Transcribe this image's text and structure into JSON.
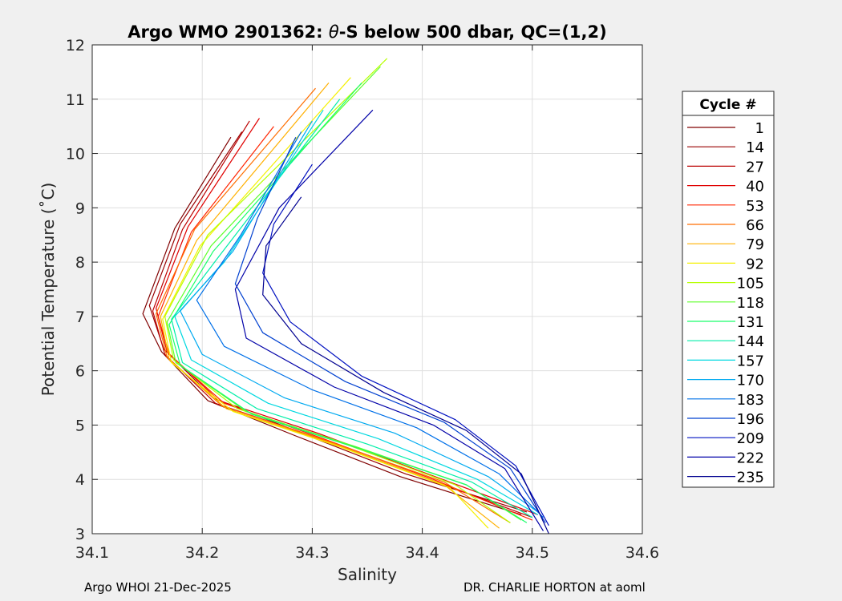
{
  "chart_data": {
    "type": "line",
    "title_prefix": "Argo WMO 2901362: ",
    "title_symbol": "θ",
    "title_suffix": "-S below 500 dbar,  QC=(1,2)",
    "xlabel": "Salinity",
    "ylabel": "Potential Temperature (˚C)",
    "xlim": [
      34.1,
      34.6
    ],
    "ylim": [
      3,
      12
    ],
    "xticks": [
      34.1,
      34.2,
      34.3,
      34.4,
      34.5,
      34.6
    ],
    "xtick_labels": [
      "34.1",
      "34.2",
      "34.3",
      "34.4",
      "34.5",
      "34.6"
    ],
    "yticks": [
      3,
      4,
      5,
      6,
      7,
      8,
      9,
      10,
      11,
      12
    ],
    "ytick_labels": [
      "3",
      "4",
      "5",
      "6",
      "7",
      "8",
      "9",
      "10",
      "11",
      "12"
    ],
    "grid": true,
    "legend_title": "Cycle #",
    "legend_position": "outside-right",
    "series": [
      {
        "name": "1",
        "color": "#800000",
        "points": [
          [
            34.226,
            10.3
          ],
          [
            34.175,
            8.62
          ],
          [
            34.146,
            7.05
          ],
          [
            34.163,
            6.35
          ],
          [
            34.205,
            5.45
          ],
          [
            34.285,
            4.8
          ],
          [
            34.38,
            4.05
          ],
          [
            34.49,
            3.35
          ]
        ]
      },
      {
        "name": "14",
        "color": "#990000",
        "points": [
          [
            34.236,
            10.4
          ],
          [
            34.18,
            8.7
          ],
          [
            34.152,
            7.2
          ],
          [
            34.165,
            6.4
          ],
          [
            34.21,
            5.5
          ],
          [
            34.29,
            4.85
          ],
          [
            34.385,
            4.1
          ],
          [
            34.495,
            3.4
          ]
        ]
      },
      {
        "name": "27",
        "color": "#bb0000",
        "points": [
          [
            34.243,
            10.6
          ],
          [
            34.182,
            8.6
          ],
          [
            34.155,
            7.1
          ],
          [
            34.166,
            6.3
          ],
          [
            34.212,
            5.4
          ],
          [
            34.3,
            4.8
          ],
          [
            34.4,
            4.05
          ],
          [
            34.5,
            3.3
          ]
        ]
      },
      {
        "name": "40",
        "color": "#e00000",
        "points": [
          [
            34.252,
            10.65
          ],
          [
            34.187,
            8.65
          ],
          [
            34.158,
            7.15
          ],
          [
            34.168,
            6.35
          ],
          [
            34.215,
            5.45
          ],
          [
            34.305,
            4.85
          ],
          [
            34.405,
            4.1
          ],
          [
            34.505,
            3.35
          ]
        ]
      },
      {
        "name": "53",
        "color": "#ff2400",
        "points": [
          [
            34.265,
            10.5
          ],
          [
            34.19,
            8.55
          ],
          [
            34.16,
            7.0
          ],
          [
            34.17,
            6.3
          ],
          [
            34.22,
            5.4
          ],
          [
            34.31,
            4.75
          ],
          [
            34.41,
            4.0
          ],
          [
            34.5,
            3.25
          ]
        ]
      },
      {
        "name": "66",
        "color": "#ff6e00",
        "points": [
          [
            34.303,
            11.2
          ],
          [
            34.193,
            8.6
          ],
          [
            34.158,
            7.05
          ],
          [
            34.168,
            6.25
          ],
          [
            34.218,
            5.35
          ],
          [
            34.315,
            4.7
          ],
          [
            34.42,
            3.95
          ],
          [
            34.48,
            3.2
          ]
        ]
      },
      {
        "name": "79",
        "color": "#ffb000",
        "points": [
          [
            34.315,
            11.3
          ],
          [
            34.195,
            8.4
          ],
          [
            34.162,
            7.0
          ],
          [
            34.17,
            6.2
          ],
          [
            34.222,
            5.3
          ],
          [
            34.32,
            4.65
          ],
          [
            34.42,
            3.9
          ],
          [
            34.47,
            3.1
          ]
        ]
      },
      {
        "name": "92",
        "color": "#f5f000",
        "points": [
          [
            34.335,
            11.4
          ],
          [
            34.198,
            8.3
          ],
          [
            34.164,
            6.95
          ],
          [
            34.172,
            6.15
          ],
          [
            34.228,
            5.25
          ],
          [
            34.325,
            4.6
          ],
          [
            34.425,
            3.85
          ],
          [
            34.46,
            3.1
          ]
        ]
      },
      {
        "name": "105",
        "color": "#b6ff00",
        "points": [
          [
            34.368,
            11.75
          ],
          [
            34.205,
            8.5
          ],
          [
            34.166,
            7.0
          ],
          [
            34.174,
            6.2
          ],
          [
            34.232,
            5.3
          ],
          [
            34.33,
            4.65
          ],
          [
            34.43,
            3.9
          ],
          [
            34.48,
            3.2
          ]
        ]
      },
      {
        "name": "118",
        "color": "#5eff2a",
        "points": [
          [
            34.362,
            11.6
          ],
          [
            34.208,
            8.3
          ],
          [
            34.168,
            6.9
          ],
          [
            34.176,
            6.15
          ],
          [
            34.24,
            5.25
          ],
          [
            34.34,
            4.6
          ],
          [
            34.44,
            3.9
          ],
          [
            34.49,
            3.25
          ]
        ]
      },
      {
        "name": "131",
        "color": "#19ff6a",
        "points": [
          [
            34.345,
            11.3
          ],
          [
            34.21,
            8.2
          ],
          [
            34.17,
            6.85
          ],
          [
            34.18,
            6.1
          ],
          [
            34.245,
            5.2
          ],
          [
            34.345,
            4.55
          ],
          [
            34.44,
            3.9
          ],
          [
            34.495,
            3.2
          ]
        ]
      },
      {
        "name": "144",
        "color": "#00eea8",
        "points": [
          [
            34.325,
            11.0
          ],
          [
            34.215,
            8.1
          ],
          [
            34.172,
            6.95
          ],
          [
            34.182,
            6.15
          ],
          [
            34.25,
            5.3
          ],
          [
            34.35,
            4.65
          ],
          [
            34.445,
            3.95
          ],
          [
            34.5,
            3.3
          ]
        ]
      },
      {
        "name": "157",
        "color": "#00d8e0",
        "points": [
          [
            34.31,
            10.8
          ],
          [
            34.22,
            8.0
          ],
          [
            34.175,
            7.0
          ],
          [
            34.19,
            6.2
          ],
          [
            34.26,
            5.4
          ],
          [
            34.36,
            4.75
          ],
          [
            34.45,
            4.0
          ],
          [
            34.505,
            3.35
          ]
        ]
      },
      {
        "name": "170",
        "color": "#00aaf0",
        "points": [
          [
            34.3,
            10.6
          ],
          [
            34.228,
            8.2
          ],
          [
            34.18,
            7.1
          ],
          [
            34.2,
            6.3
          ],
          [
            34.275,
            5.5
          ],
          [
            34.375,
            4.85
          ],
          [
            34.46,
            4.05
          ],
          [
            34.505,
            3.4
          ]
        ]
      },
      {
        "name": "183",
        "color": "#0070e8",
        "points": [
          [
            34.29,
            10.4
          ],
          [
            34.235,
            8.5
          ],
          [
            34.195,
            7.3
          ],
          [
            34.22,
            6.45
          ],
          [
            34.3,
            5.65
          ],
          [
            34.395,
            4.95
          ],
          [
            34.47,
            4.1
          ],
          [
            34.51,
            3.3
          ]
        ]
      },
      {
        "name": "196",
        "color": "#0040d0",
        "points": [
          [
            34.285,
            10.3
          ],
          [
            34.25,
            8.8
          ],
          [
            34.23,
            7.6
          ],
          [
            34.255,
            6.7
          ],
          [
            34.33,
            5.8
          ],
          [
            34.42,
            5.05
          ],
          [
            34.48,
            4.2
          ],
          [
            34.512,
            3.2
          ]
        ]
      },
      {
        "name": "209",
        "color": "#0010c0",
        "points": [
          [
            34.3,
            9.8
          ],
          [
            34.265,
            8.7
          ],
          [
            34.255,
            7.8
          ],
          [
            34.28,
            6.9
          ],
          [
            34.345,
            5.9
          ],
          [
            34.43,
            5.1
          ],
          [
            34.485,
            4.25
          ],
          [
            34.515,
            3.15
          ]
        ]
      },
      {
        "name": "222",
        "color": "#0000a8",
        "points": [
          [
            34.355,
            10.8
          ],
          [
            34.27,
            9.0
          ],
          [
            34.23,
            7.5
          ],
          [
            34.24,
            6.6
          ],
          [
            34.32,
            5.7
          ],
          [
            34.41,
            5.0
          ],
          [
            34.475,
            4.2
          ],
          [
            34.51,
            3.05
          ]
        ]
      },
      {
        "name": "235",
        "color": "#000090",
        "points": [
          [
            34.29,
            9.2
          ],
          [
            34.258,
            8.3
          ],
          [
            34.255,
            7.4
          ],
          [
            34.29,
            6.5
          ],
          [
            34.365,
            5.6
          ],
          [
            34.44,
            4.9
          ],
          [
            34.49,
            4.1
          ],
          [
            34.515,
            3.0
          ]
        ]
      }
    ]
  },
  "footer": {
    "left": "Argo WHOI 21-Dec-2025",
    "right": "DR. CHARLIE HORTON at aoml"
  }
}
